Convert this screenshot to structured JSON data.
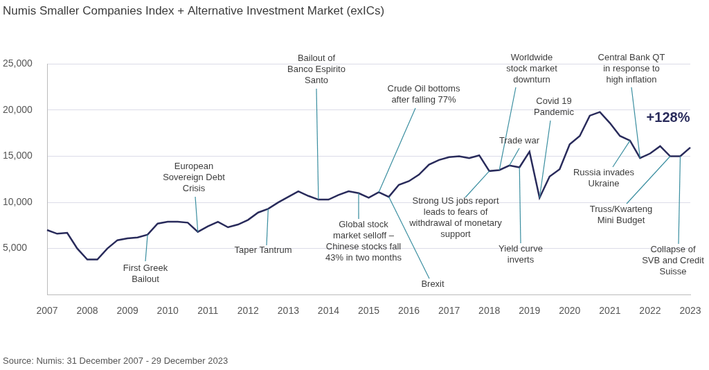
{
  "chart_data": {
    "type": "line",
    "title": "Numis Smaller Companies Index + Alternative Investment Market (exICs)",
    "source": "Source: Numis: 31 December 2007 - 29 December 2023",
    "color": "#292b5b",
    "grid": true,
    "categories": [
      "2007",
      null,
      null,
      null,
      "2008",
      null,
      null,
      null,
      "2009",
      null,
      null,
      null,
      "2010",
      null,
      null,
      null,
      "2011",
      null,
      null,
      null,
      "2012",
      null,
      null,
      null,
      "2013",
      null,
      null,
      null,
      "2014",
      null,
      null,
      null,
      "2015",
      null,
      null,
      null,
      "2016",
      null,
      null,
      null,
      "2017",
      null,
      null,
      null,
      "2018",
      null,
      null,
      null,
      "2019",
      null,
      null,
      null,
      "2020",
      null,
      null,
      null,
      "2021",
      null,
      null,
      null,
      "2022",
      null,
      null,
      null,
      "2023"
    ],
    "values": [
      7000,
      6600,
      6700,
      5000,
      3800,
      3800,
      5000,
      5900,
      6100,
      6200,
      6500,
      7700,
      7900,
      7900,
      7800,
      6800,
      7400,
      7900,
      7300,
      7600,
      8100,
      8900,
      9300,
      10000,
      10600,
      11200,
      10700,
      10300,
      10300,
      10800,
      11200,
      11000,
      10500,
      11100,
      10600,
      11900,
      12300,
      13000,
      14100,
      14600,
      14900,
      15000,
      14800,
      15100,
      13400,
      13500,
      14000,
      13800,
      15500,
      10500,
      12800,
      13600,
      16300,
      17200,
      19400,
      19800,
      18600,
      17200,
      16700,
      14800,
      15300,
      16100,
      15000,
      15000,
      15950
    ],
    "ylim": [
      0,
      25000
    ],
    "yticks": [
      {
        "value": 5000,
        "label": "5,000"
      },
      {
        "value": 10000,
        "label": "10,000"
      },
      {
        "value": 15000,
        "label": "15,000"
      },
      {
        "value": 20000,
        "label": "20,000"
      },
      {
        "value": 25000,
        "label": "25,000"
      }
    ],
    "annotations": [
      {
        "text": "First Greek\nBailout",
        "at": 10
      },
      {
        "text": "European\nSovereign Debt\nCrisis",
        "at": 15
      },
      {
        "text": "Taper Tantrum",
        "at": 22
      },
      {
        "text": "Bailout of\nBanco Espirito\nSanto",
        "at": 27
      },
      {
        "text": "Global stock\nmarket selloff –\nChinese stocks fall\n43% in two months",
        "at": 31
      },
      {
        "text": "Crude Oil bottoms\nafter falling 77%",
        "at": 33
      },
      {
        "text": "Brexit",
        "at": 34
      },
      {
        "text": "Worldwide\nstock market\ndownturn",
        "at": 45
      },
      {
        "text": "Strong US jobs report\nleads to fears of\nwithdrawal of monetary\nsupport",
        "at": 44
      },
      {
        "text": "Trade war",
        "at": 46
      },
      {
        "text": "Yield curve\ninverts",
        "at": 47
      },
      {
        "text": "Covid 19\nPandemic",
        "at": 49
      },
      {
        "text": "Central Bank QT\nin response to\nhigh inflation",
        "at": 59
      },
      {
        "text": "Russia invades\nUkraine",
        "at": 58
      },
      {
        "text": "Truss/Kwarteng\nMini Budget",
        "at": 62
      },
      {
        "text": "Collapse of\nSVB and Credit\nSuisse",
        "at": 63
      },
      {
        "text": "+128%",
        "at": 64
      }
    ]
  }
}
